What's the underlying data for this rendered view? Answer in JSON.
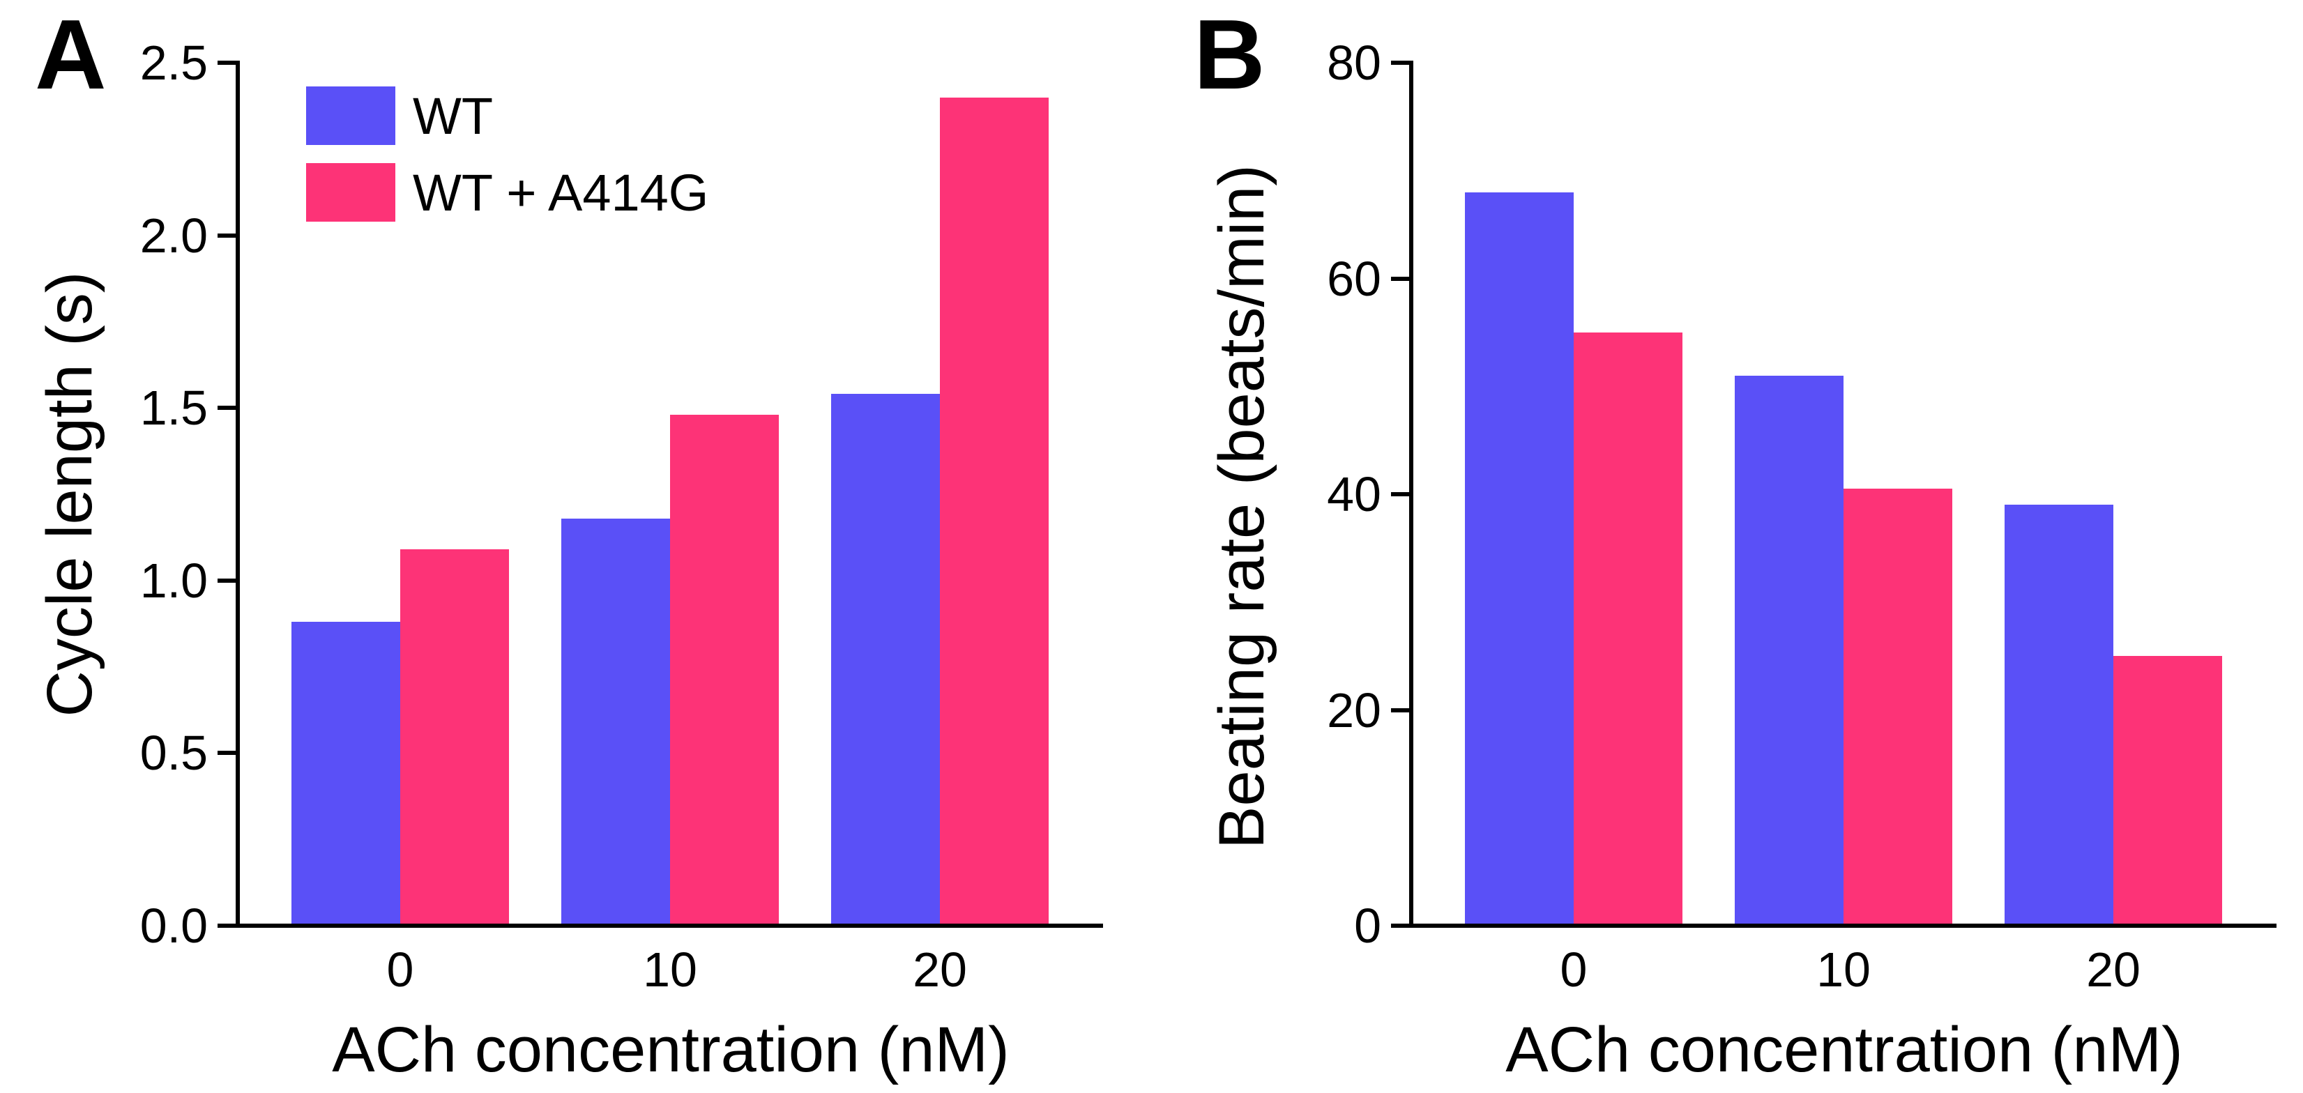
{
  "figure_title": "",
  "legend": {
    "items": [
      {
        "label": "WT",
        "color": "#5a50f7"
      },
      {
        "label": "WT + A414G",
        "color": "#fd3377"
      }
    ]
  },
  "chart_data": [
    {
      "panel": "A",
      "type": "bar",
      "title": "",
      "categories": [
        "0",
        "10",
        "20"
      ],
      "series": [
        {
          "name": "WT",
          "color": "#5a50f7",
          "values": [
            0.88,
            1.18,
            1.54
          ]
        },
        {
          "name": "WT + A414G",
          "color": "#fd3377",
          "values": [
            1.09,
            1.48,
            2.4
          ]
        }
      ],
      "xlabel": "ACh concentration (nM)",
      "ylabel": "Cycle length (s)",
      "ylim": [
        0,
        2.5
      ],
      "yticks": [
        0,
        0.5,
        1.0,
        1.5,
        2.0,
        2.5
      ],
      "ytick_labels": [
        "0.0",
        "0.5",
        "1.0",
        "1.5",
        "2.0",
        "2.5"
      ],
      "grid": false,
      "legend_visible": true,
      "legend_position": "upper-left-inside"
    },
    {
      "panel": "B",
      "type": "bar",
      "title": "",
      "categories": [
        "0",
        "10",
        "20"
      ],
      "series": [
        {
          "name": "WT",
          "color": "#5a50f7",
          "values": [
            68,
            51,
            39
          ]
        },
        {
          "name": "WT + A414G",
          "color": "#fd3377",
          "values": [
            55,
            40.5,
            25
          ]
        }
      ],
      "xlabel": "ACh concentration (nM)",
      "ylabel": "Beating rate (beats/min)",
      "ylim": [
        0,
        80
      ],
      "yticks": [
        0,
        20,
        40,
        60,
        80
      ],
      "ytick_labels": [
        "0",
        "20",
        "40",
        "60",
        "80"
      ],
      "grid": false,
      "legend_visible": false,
      "legend_position": null
    }
  ]
}
